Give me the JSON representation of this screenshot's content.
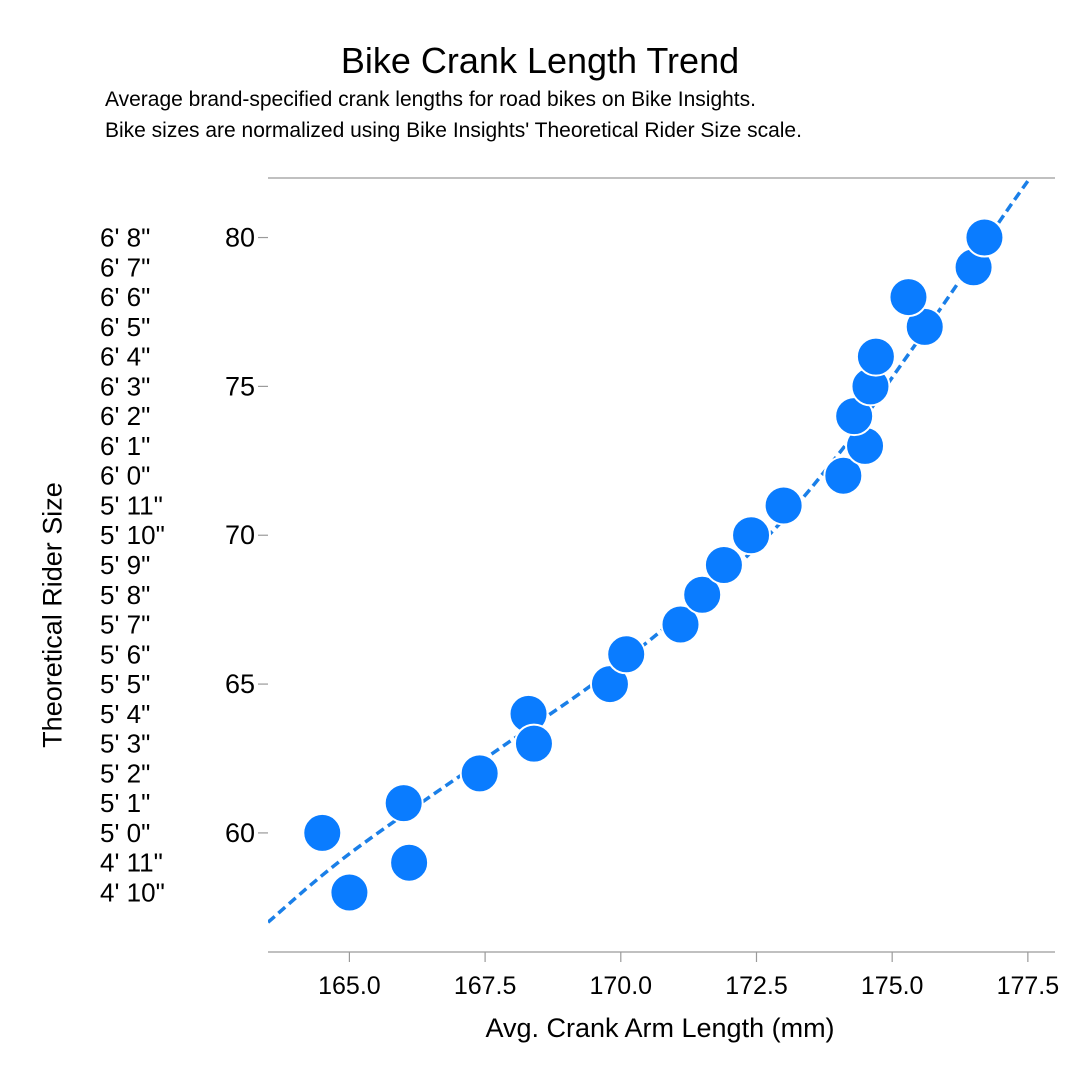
{
  "chart_data": {
    "type": "scatter",
    "title": "Bike Crank Length Trend",
    "subtitle": [
      "Average brand-specified crank lengths for road bikes on Bike Insights.",
      "Bike sizes are normalized using Bike Insights' Theoretical Rider Size scale."
    ],
    "xlabel": "Avg. Crank Arm Length (mm)",
    "ylabel": "Theoretical Rider Size",
    "xlim": [
      163.5,
      178.0
    ],
    "ylim": [
      56.0,
      82.0
    ],
    "x_ticks": [
      165.0,
      167.5,
      170.0,
      172.5,
      175.0,
      177.5
    ],
    "x_tick_labels": [
      "165.0",
      "167.5",
      "170.0",
      "172.5",
      "175.0",
      "177.5"
    ],
    "y_ticks": [
      60,
      65,
      70,
      75,
      80
    ],
    "y_tick_labels": [
      "60",
      "65",
      "70",
      "75",
      "80"
    ],
    "height_labels": [
      {
        "value": 58,
        "label": "4' 10\""
      },
      {
        "value": 59,
        "label": "4' 11\""
      },
      {
        "value": 60,
        "label": "5' 0\""
      },
      {
        "value": 61,
        "label": "5' 1\""
      },
      {
        "value": 62,
        "label": "5' 2\""
      },
      {
        "value": 63,
        "label": "5' 3\""
      },
      {
        "value": 64,
        "label": "5' 4\""
      },
      {
        "value": 65,
        "label": "5' 5\""
      },
      {
        "value": 66,
        "label": "5' 6\""
      },
      {
        "value": 67,
        "label": "5' 7\""
      },
      {
        "value": 68,
        "label": "5' 8\""
      },
      {
        "value": 69,
        "label": "5' 9\""
      },
      {
        "value": 70,
        "label": "5' 10\""
      },
      {
        "value": 71,
        "label": "5' 11\""
      },
      {
        "value": 72,
        "label": "6' 0\""
      },
      {
        "value": 73,
        "label": "6' 1\""
      },
      {
        "value": 74,
        "label": "6' 2\""
      },
      {
        "value": 75,
        "label": "6' 3\""
      },
      {
        "value": 76,
        "label": "6' 4\""
      },
      {
        "value": 77,
        "label": "6' 5\""
      },
      {
        "value": 78,
        "label": "6' 6\""
      },
      {
        "value": 79,
        "label": "6' 7\""
      },
      {
        "value": 80,
        "label": "6' 8\""
      }
    ],
    "points": [
      {
        "x": 164.5,
        "y": 60
      },
      {
        "x": 165.0,
        "y": 58
      },
      {
        "x": 166.0,
        "y": 61
      },
      {
        "x": 166.1,
        "y": 59
      },
      {
        "x": 167.4,
        "y": 62
      },
      {
        "x": 168.3,
        "y": 64
      },
      {
        "x": 168.4,
        "y": 63
      },
      {
        "x": 169.8,
        "y": 65
      },
      {
        "x": 170.1,
        "y": 66
      },
      {
        "x": 171.1,
        "y": 67
      },
      {
        "x": 171.5,
        "y": 68
      },
      {
        "x": 171.9,
        "y": 69
      },
      {
        "x": 172.4,
        "y": 70
      },
      {
        "x": 173.0,
        "y": 71
      },
      {
        "x": 174.1,
        "y": 72
      },
      {
        "x": 174.5,
        "y": 73
      },
      {
        "x": 174.3,
        "y": 74
      },
      {
        "x": 174.6,
        "y": 75
      },
      {
        "x": 174.7,
        "y": 76
      },
      {
        "x": 175.6,
        "y": 77
      },
      {
        "x": 175.3,
        "y": 78
      },
      {
        "x": 176.5,
        "y": 79
      },
      {
        "x": 176.7,
        "y": 80
      }
    ],
    "trend": [
      {
        "x": 163.5,
        "y": 57.0
      },
      {
        "x": 165.0,
        "y": 59.3
      },
      {
        "x": 167.5,
        "y": 62.5
      },
      {
        "x": 170.0,
        "y": 65.7
      },
      {
        "x": 172.5,
        "y": 69.6
      },
      {
        "x": 174.0,
        "y": 72.7
      },
      {
        "x": 175.0,
        "y": 75.3
      },
      {
        "x": 176.0,
        "y": 77.9
      },
      {
        "x": 177.0,
        "y": 80.6
      },
      {
        "x": 177.5,
        "y": 81.9
      }
    ],
    "point_color": "#0a7cff",
    "trend_color": "#1a7fe8",
    "grid": false
  }
}
